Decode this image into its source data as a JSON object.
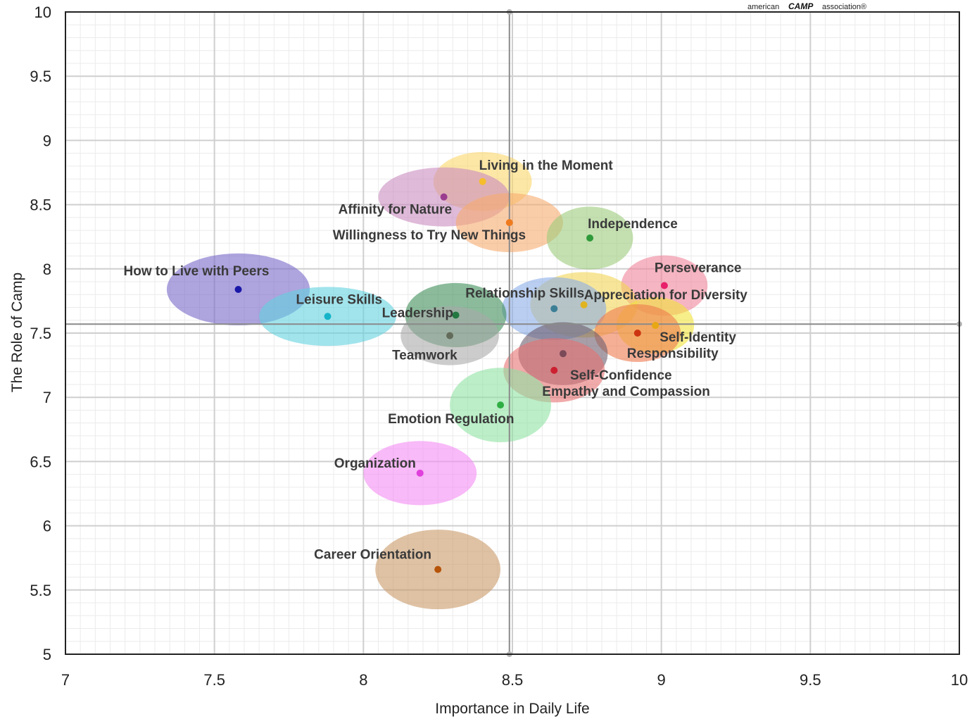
{
  "logo": {
    "left": "american",
    "mid": "CAMP",
    "right": "association®"
  },
  "chart_data": {
    "type": "scatter",
    "xlabel": "Importance in Daily Life",
    "ylabel": "The Role of Camp",
    "xlim": [
      7,
      10
    ],
    "ylim": [
      5,
      10
    ],
    "xticks": [
      "7",
      "7.5",
      "8",
      "8.5",
      "9",
      "9.5",
      "10"
    ],
    "yticks": [
      "5",
      "5.5",
      "6",
      "6.5",
      "7",
      "7.5",
      "8",
      "8.5",
      "9",
      "9.5",
      "10"
    ],
    "grid": true,
    "reference_lines": {
      "x": 8.49,
      "y": 7.57
    },
    "points": [
      {
        "name": "Living in the Moment",
        "x": 8.4,
        "y": 8.68,
        "rx": 0.165,
        "ry": 0.23,
        "color": "#f6bd2c",
        "fill": "#fbd76a"
      },
      {
        "name": "Affinity for Nature",
        "x": 8.27,
        "y": 8.56,
        "rx": 0.22,
        "ry": 0.23,
        "color": "#9b3d8f",
        "fill": "#c98cc0"
      },
      {
        "name": "Willingness to Try New Things",
        "x": 8.49,
        "y": 8.36,
        "rx": 0.18,
        "ry": 0.23,
        "color": "#ef7b1f",
        "fill": "#f7ac70"
      },
      {
        "name": "Independence",
        "x": 8.76,
        "y": 8.24,
        "rx": 0.145,
        "ry": 0.245,
        "color": "#2e9a3a",
        "fill": "#9ccc7c"
      },
      {
        "name": "How to Live with Peers",
        "x": 7.58,
        "y": 7.84,
        "rx": 0.24,
        "ry": 0.28,
        "color": "#1a18a8",
        "fill": "#7868c8"
      },
      {
        "name": "Perseverance",
        "x": 9.01,
        "y": 7.87,
        "rx": 0.145,
        "ry": 0.235,
        "color": "#e8206b",
        "fill": "#f0849a"
      },
      {
        "name": "Appreciation for Diversity",
        "x": 8.74,
        "y": 7.72,
        "rx": 0.18,
        "ry": 0.255,
        "color": "#e0b421",
        "fill": "#f1d655"
      },
      {
        "name": "Relationship Skills",
        "x": 8.64,
        "y": 7.69,
        "rx": 0.175,
        "ry": 0.245,
        "color": "#3c7f95",
        "fill": "#8aaee8"
      },
      {
        "name": "Leisure Skills",
        "x": 7.88,
        "y": 7.63,
        "rx": 0.23,
        "ry": 0.23,
        "color": "#16b4c8",
        "fill": "#63d2e0"
      },
      {
        "name": "Leadership",
        "x": 8.31,
        "y": 7.64,
        "rx": 0.17,
        "ry": 0.25,
        "color": "#227840",
        "fill": "#3e8e58"
      },
      {
        "name": "Self-Identity",
        "x": 8.98,
        "y": 7.56,
        "rx": 0.13,
        "ry": 0.22,
        "color": "#e8a714",
        "fill": "#f2e43a"
      },
      {
        "name": "Teamwork",
        "x": 8.29,
        "y": 7.48,
        "rx": 0.165,
        "ry": 0.23,
        "color": "#636b5a",
        "fill": "#a8aaa8"
      },
      {
        "name": "Responsibility",
        "x": 8.92,
        "y": 7.5,
        "rx": 0.145,
        "ry": 0.225,
        "color": "#cc3410",
        "fill": "#ef7a4e"
      },
      {
        "name": "Self-Confidence",
        "x": 8.67,
        "y": 7.34,
        "rx": 0.15,
        "ry": 0.245,
        "color": "#7a4a58",
        "fill": "#6d5d6e"
      },
      {
        "name": "Empathy and Compassion",
        "x": 8.64,
        "y": 7.21,
        "rx": 0.17,
        "ry": 0.25,
        "color": "#cc2030",
        "fill": "#e87272"
      },
      {
        "name": "Emotion Regulation",
        "x": 8.46,
        "y": 6.94,
        "rx": 0.17,
        "ry": 0.29,
        "color": "#2fae44",
        "fill": "#8fe2a4"
      },
      {
        "name": "Organization",
        "x": 8.19,
        "y": 6.41,
        "rx": 0.19,
        "ry": 0.25,
        "color": "#e040dc",
        "fill": "#f48cf4"
      },
      {
        "name": "Career Orientation",
        "x": 8.25,
        "y": 5.66,
        "rx": 0.21,
        "ry": 0.31,
        "color": "#b6540a",
        "fill": "#c99a68"
      }
    ]
  }
}
